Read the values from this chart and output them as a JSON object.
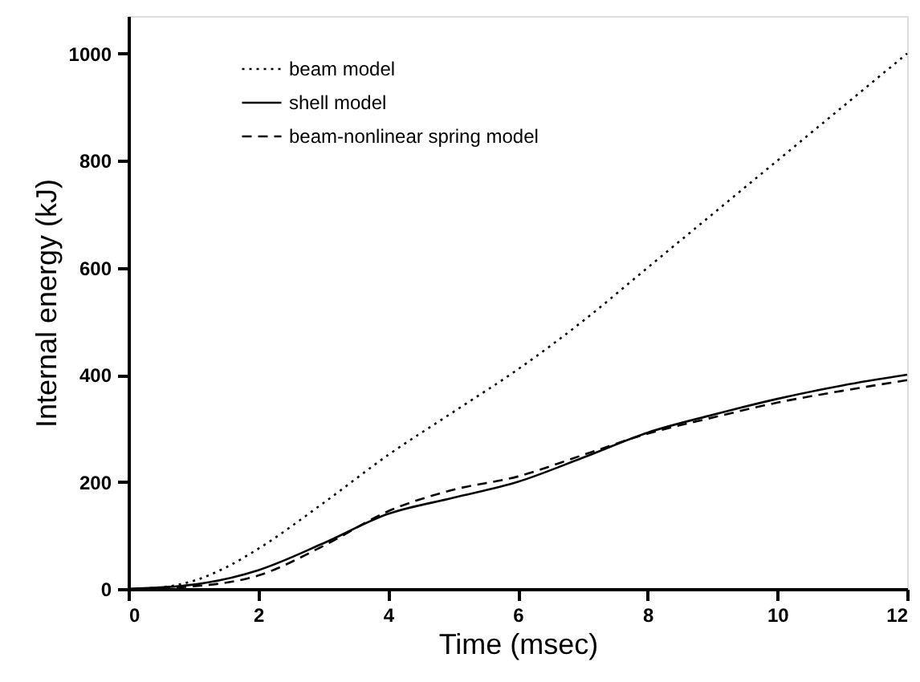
{
  "chart_data": {
    "type": "line",
    "xlabel": "Time (msec)",
    "ylabel": "Internal energy (kJ)",
    "xlim": [
      0,
      12
    ],
    "xticks": [
      0,
      2,
      4,
      6,
      8,
      10,
      12
    ],
    "ylim": [
      0,
      1070
    ],
    "yticks": [
      0,
      200,
      400,
      600,
      800,
      1000
    ],
    "grid": false,
    "legend": "top left",
    "marker": "none",
    "series": [
      {
        "name": "beam model",
        "color": "#000000",
        "line_style": "dotted",
        "x": [
          0,
          0.5,
          1,
          1.5,
          2,
          3,
          4,
          5,
          6,
          7,
          8,
          9,
          10,
          11,
          12
        ],
        "values": [
          0,
          3,
          15,
          40,
          75,
          160,
          250,
          330,
          410,
          500,
          600,
          700,
          800,
          900,
          1000
        ]
      },
      {
        "name": "shell model",
        "color": "#000000",
        "line_style": "solid",
        "x": [
          0,
          1,
          2,
          3,
          4,
          5,
          6,
          7,
          8,
          9,
          10,
          11,
          12
        ],
        "values": [
          0,
          8,
          35,
          85,
          140,
          170,
          200,
          245,
          292,
          325,
          355,
          380,
          400
        ]
      },
      {
        "name": "beam-nonlinear spring model",
        "color": "#000000",
        "line_style": "dashed",
        "x": [
          0,
          1,
          2,
          3,
          4,
          5,
          6,
          7,
          8,
          9,
          10,
          11,
          12
        ],
        "values": [
          0,
          5,
          25,
          80,
          145,
          185,
          210,
          250,
          290,
          320,
          348,
          370,
          390
        ]
      }
    ]
  }
}
